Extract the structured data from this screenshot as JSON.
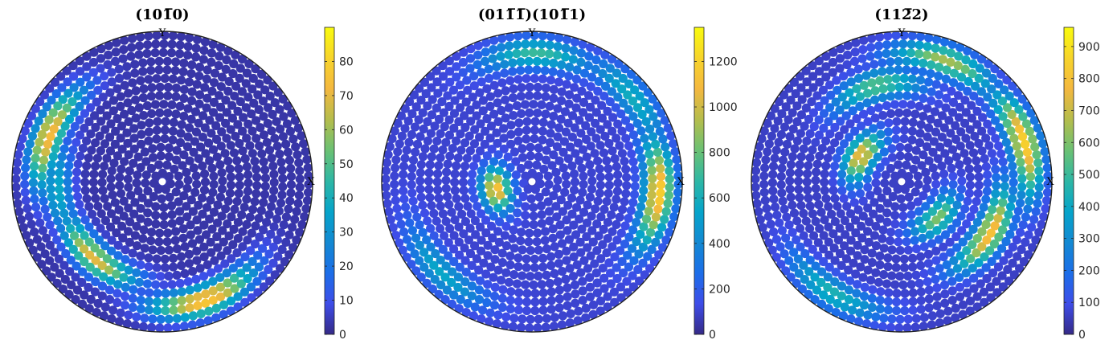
{
  "chart_data": [
    {
      "type": "scatter",
      "subtype": "pole-figure",
      "title": "(10̅0)",
      "title_parts": [
        "(10",
        "1̅",
        "0)"
      ],
      "axis_labels": {
        "x": "X",
        "y": "Y"
      },
      "colorbar": {
        "min": 0,
        "max": 90,
        "ticks": [
          0,
          10,
          20,
          30,
          40,
          50,
          60,
          70,
          80
        ]
      },
      "hotspots": [
        {
          "label": "upper-left lobe",
          "azimuth_deg": 158,
          "radius_frac": 0.84,
          "value": 75
        },
        {
          "label": "left arc",
          "azimuth_deg": 185,
          "radius_frac": 0.72,
          "value": 38
        },
        {
          "label": "lower-left lobe",
          "azimuth_deg": 228,
          "radius_frac": 0.7,
          "value": 70
        },
        {
          "label": "bottom lobe",
          "azimuth_deg": 290,
          "radius_frac": 0.86,
          "value": 80
        }
      ],
      "colormap": "parula",
      "background_value": 3
    },
    {
      "type": "scatter",
      "subtype": "pole-figure",
      "title": "(011̅1̅)(101̅1)",
      "title_parts": [
        "(01",
        "1̅",
        "1̅",
        ")(10",
        "1̅",
        "1)"
      ],
      "axis_labels": {
        "x": "X",
        "y": "Y"
      },
      "colorbar": {
        "min": 0,
        "max": 1350,
        "ticks": [
          0,
          200,
          400,
          600,
          800,
          1000,
          1200
        ]
      },
      "hotspots": [
        {
          "label": "inner left arc",
          "azimuth_deg": 192,
          "radius_frac": 0.25,
          "value": 1150
        },
        {
          "label": "right lobe",
          "azimuth_deg": 355,
          "radius_frac": 0.87,
          "value": 1200
        },
        {
          "label": "top lobe",
          "azimuth_deg": 88,
          "radius_frac": 0.88,
          "value": 700
        },
        {
          "label": "upper-right patch",
          "azimuth_deg": 40,
          "radius_frac": 0.9,
          "value": 600
        },
        {
          "label": "lower-left patch",
          "azimuth_deg": 225,
          "radius_frac": 0.88,
          "value": 550
        }
      ],
      "colormap": "parula",
      "background_value": 100
    },
    {
      "type": "scatter",
      "subtype": "pole-figure",
      "title": "(112̅2)",
      "title_parts": [
        "(11",
        "2̅",
        "2)"
      ],
      "axis_labels": {
        "x": "X",
        "y": "Y"
      },
      "colorbar": {
        "min": 0,
        "max": 960,
        "ticks": [
          0,
          100,
          200,
          300,
          400,
          500,
          600,
          700,
          800,
          900
        ]
      },
      "hotspots": [
        {
          "label": "upper-left crescent",
          "azimuth_deg": 148,
          "radius_frac": 0.33,
          "value": 780
        },
        {
          "label": "lower-right inner band",
          "azimuth_deg": 315,
          "radius_frac": 0.35,
          "value": 600
        },
        {
          "label": "right lobe",
          "azimuth_deg": 18,
          "radius_frac": 0.88,
          "value": 850
        },
        {
          "label": "lower-right lobe",
          "azimuth_deg": 330,
          "radius_frac": 0.7,
          "value": 800
        },
        {
          "label": "top lobe",
          "azimuth_deg": 70,
          "radius_frac": 0.88,
          "value": 650
        },
        {
          "label": "upper-left arc",
          "azimuth_deg": 105,
          "radius_frac": 0.68,
          "value": 550
        },
        {
          "label": "bottom-left patch",
          "azimuth_deg": 238,
          "radius_frac": 0.9,
          "value": 450
        }
      ],
      "colormap": "parula",
      "background_value": 60
    }
  ]
}
